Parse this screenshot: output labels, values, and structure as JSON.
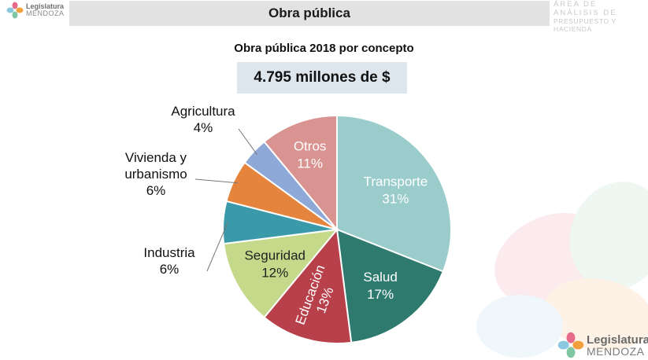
{
  "header": {
    "title": "Obra pública",
    "logo_name": "Legislatura",
    "logo_sub": "MENDOZA",
    "dept_line1": "ÁREA DE ANÁLISIS DE",
    "dept_line2": "PRESUPUESTO Y HACIENDA"
  },
  "footer": {
    "logo_name": "Legislatura",
    "logo_sub": "MENDOZA"
  },
  "colors": {
    "logo_petals": [
      "#e66a8a",
      "#f2a03d",
      "#7fc6a2",
      "#8bc8df"
    ]
  },
  "chart_data": {
    "type": "pie",
    "title": "Obra pública 2018 por concepto",
    "total": "4.795 millones de $",
    "slices": [
      {
        "name": "Transporte",
        "value": 31,
        "label": "31%",
        "color": "#99cccb"
      },
      {
        "name": "Salud",
        "value": 17,
        "label": "17%",
        "color": "#2f7a6e"
      },
      {
        "name": "Educación",
        "value": 13,
        "label": "13%",
        "color": "#b8404a"
      },
      {
        "name": "Seguridad",
        "value": 12,
        "label": "12%",
        "color": "#c4d98a"
      },
      {
        "name": "Industria",
        "value": 6,
        "label": "6%",
        "color": "#3b9aaa"
      },
      {
        "name": "Vivienda y urbanismo",
        "value": 6,
        "label": "6%",
        "color": "#e5843c"
      },
      {
        "name": "Agricultura",
        "value": 4,
        "label": "4%",
        "color": "#8ea8d8"
      },
      {
        "name": "Otros",
        "value": 11,
        "label": "11%",
        "color": "#d99391"
      }
    ],
    "labels_inside": [
      "Transporte",
      "Salud",
      "Educación",
      "Seguridad",
      "Otros"
    ],
    "labels_outside": [
      "Industria",
      "Vivienda y urbanismo",
      "Agricultura"
    ],
    "start_angle_deg": 0,
    "direction": "clockwise"
  }
}
